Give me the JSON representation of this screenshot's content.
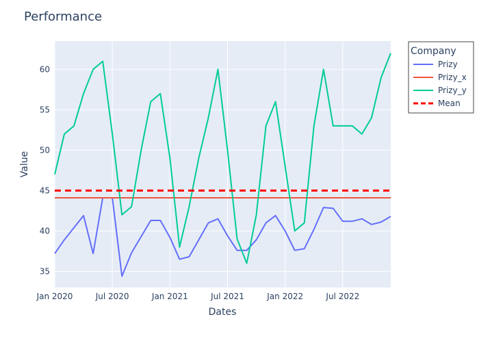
{
  "chart_data": {
    "type": "line",
    "title": "Performance",
    "xlabel": "Dates",
    "ylabel": "Value",
    "legend_title": "Company",
    "legend_position": "right-outside",
    "grid": true,
    "x": [
      "2020-01",
      "2020-02",
      "2020-03",
      "2020-04",
      "2020-05",
      "2020-06",
      "2020-07",
      "2020-08",
      "2020-09",
      "2020-10",
      "2020-11",
      "2020-12",
      "2021-01",
      "2021-02",
      "2021-03",
      "2021-04",
      "2021-05",
      "2021-06",
      "2021-07",
      "2021-08",
      "2021-09",
      "2021-10",
      "2021-11",
      "2021-12",
      "2022-01",
      "2022-02",
      "2022-03",
      "2022-04",
      "2022-05",
      "2022-06",
      "2022-07",
      "2022-08",
      "2022-09",
      "2022-10",
      "2022-11",
      "2022-12"
    ],
    "xlim": [
      "2020-01",
      "2022-12"
    ],
    "x_ticks": [
      {
        "value": "2020-01",
        "label": "Jan 2020"
      },
      {
        "value": "2020-07",
        "label": "Jul 2020"
      },
      {
        "value": "2021-01",
        "label": "Jan 2021"
      },
      {
        "value": "2021-07",
        "label": "Jul 2021"
      },
      {
        "value": "2022-01",
        "label": "Jan 2022"
      },
      {
        "value": "2022-07",
        "label": "Jul 2022"
      }
    ],
    "ylim": [
      33,
      63.5
    ],
    "y_ticks": [
      35,
      40,
      45,
      50,
      55,
      60
    ],
    "series": [
      {
        "name": "Prizy",
        "color": "#636efa",
        "dash": "solid",
        "values": [
          37.2,
          38.9,
          40.4,
          41.9,
          37.2,
          44.1,
          44.1,
          34.4,
          37.3,
          39.3,
          41.3,
          41.3,
          39.2,
          36.5,
          36.8,
          38.9,
          41.0,
          41.5,
          39.4,
          37.6,
          37.6,
          38.9,
          41.0,
          41.9,
          40.0,
          37.6,
          37.8,
          40.2,
          42.9,
          42.8,
          41.2,
          41.2,
          41.5,
          40.8,
          41.1,
          41.8
        ]
      },
      {
        "name": "Prizy_x",
        "color": "#ef553b",
        "dash": "solid",
        "values": [
          44.1,
          44.1,
          44.1,
          44.1,
          44.1,
          44.1,
          44.1,
          44.1,
          44.1,
          44.1,
          44.1,
          44.1,
          44.1,
          44.1,
          44.1,
          44.1,
          44.1,
          44.1,
          44.1,
          44.1,
          44.1,
          44.1,
          44.1,
          44.1,
          44.1,
          44.1,
          44.1,
          44.1,
          44.1,
          44.1,
          44.1,
          44.1,
          44.1,
          44.1,
          44.1,
          44.1
        ]
      },
      {
        "name": "Prizy_y",
        "color": "#00cc96",
        "dash": "solid",
        "values": [
          47,
          52,
          53,
          57,
          60,
          61,
          52,
          42,
          43,
          50,
          56,
          57,
          49,
          38,
          43,
          49,
          54,
          60,
          50,
          39,
          36,
          42,
          53,
          56,
          48,
          40,
          41,
          53,
          60,
          53,
          53,
          53,
          52,
          54,
          59,
          62
        ]
      },
      {
        "name": "Mean",
        "color": "#ff0000",
        "dash": "dash",
        "values": [
          45,
          45,
          45,
          45,
          45,
          45,
          45,
          45,
          45,
          45,
          45,
          45,
          45,
          45,
          45,
          45,
          45,
          45,
          45,
          45,
          45,
          45,
          45,
          45,
          45,
          45,
          45,
          45,
          45,
          45,
          45,
          45,
          45,
          45,
          45,
          45
        ]
      }
    ]
  }
}
